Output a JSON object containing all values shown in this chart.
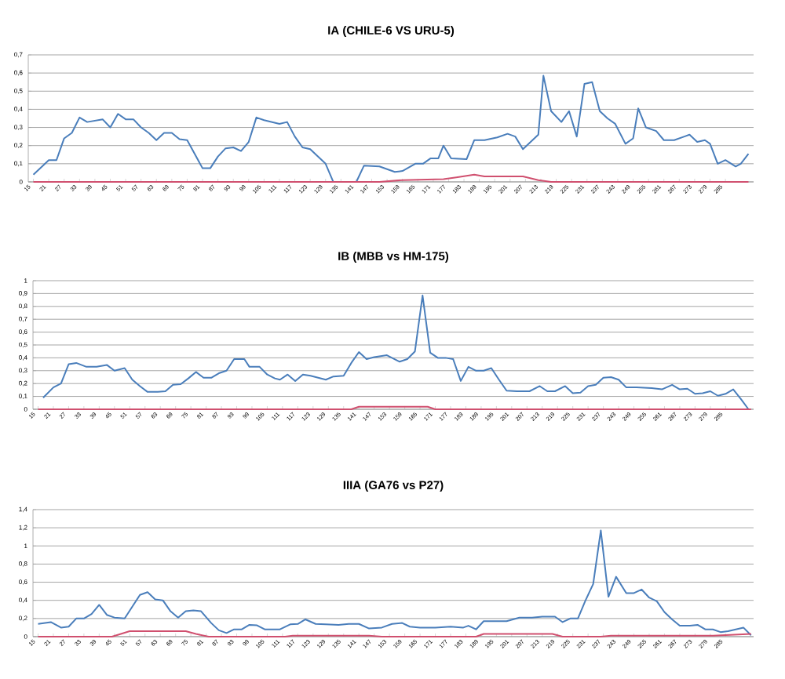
{
  "chart_data": [
    {
      "type": "line",
      "title": "IA (CHILE-6 VS URU-5)",
      "grid": "y",
      "xlim": [
        13,
        296
      ],
      "ylim": [
        0,
        0.7
      ],
      "xticks": [
        15,
        21,
        27,
        33,
        39,
        45,
        51,
        57,
        63,
        69,
        75,
        81,
        87,
        93,
        99,
        105,
        111,
        117,
        123,
        129,
        135,
        141,
        147,
        153,
        159,
        165,
        171,
        177,
        183,
        189,
        195,
        201,
        207,
        213,
        219,
        225,
        231,
        237,
        243,
        249,
        255,
        261,
        267,
        273,
        279,
        285
      ],
      "yticks": [
        0,
        {
          "value": 0.1,
          "label": "0,1"
        },
        {
          "value": 0.2,
          "label": "0,2"
        },
        {
          "value": 0.3,
          "label": "0,3"
        },
        {
          "value": 0.4,
          "label": "0,4"
        },
        {
          "value": 0.5,
          "label": "0,5"
        },
        {
          "value": 0.6,
          "label": "0,6"
        },
        {
          "value": 0.7,
          "label": "0,7"
        }
      ],
      "series": [
        {
          "color": "#4a7ebb",
          "x": [
            15,
            21,
            24,
            27,
            30,
            33,
            36,
            42,
            45,
            48,
            51,
            54,
            57,
            60,
            63,
            66,
            69,
            72,
            75,
            81,
            84,
            87,
            90,
            93,
            96,
            99,
            102,
            105,
            111,
            114,
            117,
            120,
            123,
            126,
            129,
            132,
            141,
            144,
            150,
            156,
            159,
            164,
            167,
            170,
            173,
            175,
            178,
            184,
            187,
            191,
            196,
            200,
            203,
            206,
            209,
            212,
            214,
            217,
            221,
            224,
            227,
            230,
            233,
            236,
            239,
            242,
            246,
            249,
            251,
            254,
            258,
            261,
            265,
            269,
            271,
            274,
            277,
            279,
            282,
            285,
            289,
            291,
            294
          ],
          "values": [
            0.04,
            0.12,
            0.12,
            0.24,
            0.27,
            0.355,
            0.33,
            0.345,
            0.3,
            0.375,
            0.345,
            0.345,
            0.3,
            0.27,
            0.23,
            0.27,
            0.27,
            0.235,
            0.23,
            0.075,
            0.075,
            0.14,
            0.185,
            0.19,
            0.17,
            0.22,
            0.355,
            0.34,
            0.32,
            0.33,
            0.25,
            0.19,
            0.18,
            0.14,
            0.1,
            0.0,
            0.0,
            0.09,
            0.085,
            0.055,
            0.06,
            0.1,
            0.1,
            0.13,
            0.13,
            0.2,
            0.13,
            0.125,
            0.23,
            0.23,
            0.245,
            0.265,
            0.25,
            0.18,
            0.22,
            0.26,
            0.585,
            0.39,
            0.33,
            0.39,
            0.25,
            0.54,
            0.55,
            0.39,
            0.35,
            0.32,
            0.21,
            0.24,
            0.405,
            0.3,
            0.28,
            0.23,
            0.23,
            0.25,
            0.26,
            0.22,
            0.23,
            0.21,
            0.1,
            0.12,
            0.085,
            0.1,
            0.155
          ]
        },
        {
          "color": "#d0506f",
          "x": [
            15,
            150,
            159,
            175,
            180,
            187,
            191,
            206,
            212,
            217,
            294
          ],
          "values": [
            0,
            0,
            0.01,
            0.015,
            0.025,
            0.04,
            0.03,
            0.03,
            0.01,
            0,
            0
          ]
        }
      ]
    },
    {
      "type": "line",
      "title": "IB  (MBB vs HM-175)",
      "grid": "y",
      "xlim": [
        13,
        296
      ],
      "ylim": [
        0,
        1
      ],
      "xticks": [
        15,
        21,
        27,
        33,
        39,
        45,
        51,
        57,
        63,
        69,
        75,
        81,
        87,
        93,
        99,
        105,
        111,
        117,
        123,
        129,
        135,
        141,
        147,
        153,
        159,
        165,
        171,
        177,
        183,
        189,
        195,
        201,
        207,
        213,
        219,
        225,
        231,
        237,
        243,
        249,
        255,
        261,
        267,
        273,
        279,
        285
      ],
      "yticks": [
        0,
        {
          "value": 0.1,
          "label": "0,1"
        },
        {
          "value": 0.2,
          "label": "0,2"
        },
        {
          "value": 0.3,
          "label": "0,3"
        },
        {
          "value": 0.4,
          "label": "0,4"
        },
        {
          "value": 0.5,
          "label": "0,5"
        },
        {
          "value": 0.6,
          "label": "0,6"
        },
        {
          "value": 0.7,
          "label": "0,7"
        },
        {
          "value": 0.8,
          "label": "0,8"
        },
        {
          "value": 0.9,
          "label": "0,9"
        },
        1
      ],
      "series": [
        {
          "color": "#4a7ebb",
          "x": [
            17,
            21,
            24,
            27,
            30,
            34,
            38,
            42,
            45,
            49,
            52,
            55,
            58,
            62,
            65,
            68,
            71,
            74,
            77,
            80,
            83,
            86,
            89,
            92,
            96,
            98,
            102,
            105,
            108,
            110,
            113,
            116,
            119,
            122,
            125,
            128,
            131,
            135,
            138,
            141,
            144,
            147,
            152,
            155,
            157,
            160,
            163,
            166,
            169,
            172,
            175,
            178,
            181,
            184,
            187,
            190,
            193,
            196,
            199,
            203,
            208,
            212,
            215,
            218,
            222,
            225,
            228,
            231,
            234,
            237,
            240,
            243,
            246,
            250,
            256,
            260,
            264,
            267,
            270,
            273,
            276,
            279,
            282,
            285,
            288,
            291,
            294
          ],
          "values": [
            0.09,
            0.17,
            0.2,
            0.35,
            0.36,
            0.33,
            0.33,
            0.345,
            0.3,
            0.32,
            0.23,
            0.18,
            0.135,
            0.135,
            0.14,
            0.19,
            0.195,
            0.24,
            0.29,
            0.245,
            0.245,
            0.28,
            0.3,
            0.39,
            0.39,
            0.33,
            0.33,
            0.27,
            0.24,
            0.23,
            0.27,
            0.22,
            0.27,
            0.26,
            0.245,
            0.23,
            0.255,
            0.26,
            0.36,
            0.445,
            0.39,
            0.405,
            0.42,
            0.39,
            0.37,
            0.39,
            0.45,
            0.885,
            0.44,
            0.4,
            0.4,
            0.39,
            0.22,
            0.33,
            0.3,
            0.3,
            0.32,
            0.23,
            0.145,
            0.14,
            0.14,
            0.18,
            0.14,
            0.14,
            0.18,
            0.125,
            0.13,
            0.18,
            0.19,
            0.245,
            0.25,
            0.23,
            0.17,
            0.17,
            0.165,
            0.155,
            0.19,
            0.155,
            0.16,
            0.12,
            0.125,
            0.14,
            0.105,
            0.12,
            0.155,
            0.08,
            0.0
          ]
        },
        {
          "color": "#d0506f",
          "x": [
            15,
            138,
            141,
            168,
            171,
            295
          ],
          "values": [
            0,
            0,
            0.02,
            0.02,
            0,
            0
          ]
        }
      ]
    },
    {
      "type": "line",
      "title": "IIIA (GA76 vs P27)",
      "grid": "y",
      "xlim": [
        13,
        296
      ],
      "ylim": [
        0,
        1.4
      ],
      "xticks": [
        15,
        21,
        27,
        33,
        39,
        45,
        51,
        57,
        63,
        69,
        75,
        81,
        87,
        93,
        99,
        105,
        111,
        117,
        123,
        129,
        135,
        141,
        147,
        153,
        159,
        165,
        171,
        177,
        183,
        189,
        195,
        201,
        207,
        213,
        219,
        225,
        231,
        237,
        243,
        249,
        255,
        261,
        267,
        273,
        279,
        285
      ],
      "yticks": [
        0,
        {
          "value": 0.2,
          "label": "0,2"
        },
        {
          "value": 0.4,
          "label": "0,4"
        },
        {
          "value": 0.6,
          "label": "0,6"
        },
        {
          "value": 0.8,
          "label": "0,8"
        },
        1,
        {
          "value": 1.2,
          "label": "1,2"
        },
        {
          "value": 1.4,
          "label": "1,4"
        }
      ],
      "series": [
        {
          "color": "#4a7ebb",
          "x": [
            15,
            20,
            24,
            27,
            30,
            33,
            36,
            39,
            42,
            45,
            49,
            52,
            55,
            58,
            61,
            64,
            67,
            70,
            73,
            76,
            79,
            83,
            86,
            89,
            92,
            95,
            98,
            101,
            104,
            107,
            110,
            114,
            117,
            120,
            124,
            128,
            133,
            137,
            141,
            145,
            150,
            154,
            158,
            161,
            165,
            171,
            177,
            182,
            184,
            187,
            190,
            199,
            204,
            209,
            213,
            218,
            221,
            224,
            227,
            230,
            233,
            236,
            239,
            242,
            246,
            249,
            252,
            255,
            258,
            261,
            264,
            267,
            271,
            274,
            277,
            280,
            283,
            286,
            289,
            292,
            295
          ],
          "values": [
            0.14,
            0.16,
            0.1,
            0.11,
            0.2,
            0.2,
            0.25,
            0.35,
            0.24,
            0.21,
            0.2,
            0.33,
            0.46,
            0.49,
            0.41,
            0.4,
            0.28,
            0.21,
            0.28,
            0.29,
            0.28,
            0.15,
            0.07,
            0.04,
            0.08,
            0.08,
            0.13,
            0.125,
            0.08,
            0.08,
            0.08,
            0.135,
            0.14,
            0.19,
            0.14,
            0.135,
            0.13,
            0.14,
            0.14,
            0.09,
            0.1,
            0.14,
            0.15,
            0.11,
            0.1,
            0.1,
            0.11,
            0.1,
            0.12,
            0.08,
            0.17,
            0.17,
            0.21,
            0.21,
            0.22,
            0.22,
            0.16,
            0.2,
            0.2,
            0.4,
            0.58,
            1.17,
            0.44,
            0.66,
            0.48,
            0.48,
            0.52,
            0.43,
            0.39,
            0.27,
            0.19,
            0.12,
            0.12,
            0.13,
            0.08,
            0.08,
            0.05,
            0.06,
            0.08,
            0.1,
            0.015
          ]
        },
        {
          "color": "#d0506f",
          "x": [
            15,
            44,
            51,
            73,
            77,
            82,
            112,
            115,
            145,
            150,
            187,
            190,
            217,
            221,
            236,
            240,
            280,
            295
          ],
          "values": [
            0,
            0,
            0.06,
            0.06,
            0.03,
            0,
            0,
            0.01,
            0.01,
            0,
            0,
            0.03,
            0.03,
            0,
            0,
            0.01,
            0.01,
            0.03
          ]
        }
      ]
    }
  ]
}
